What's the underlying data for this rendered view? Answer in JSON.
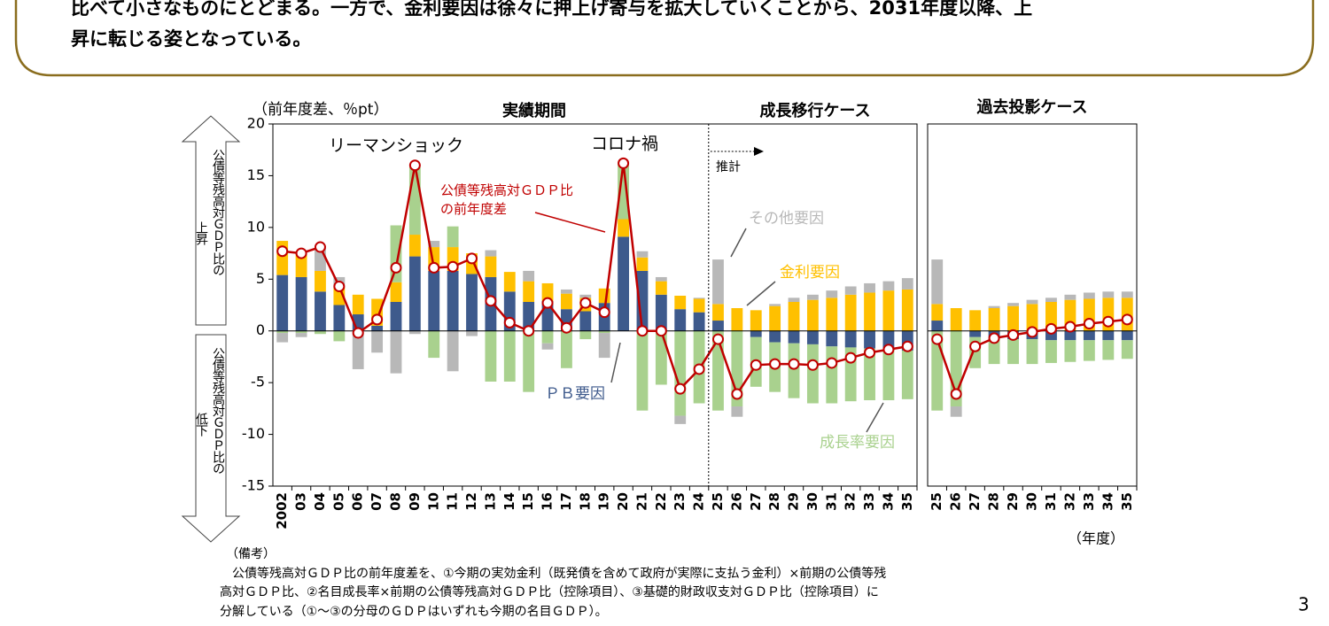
{
  "header": {
    "lines": [
      "比べて小さなものにとどまる。一方で、金利要因は徐々に押上げ寄与を拡大していくことから、2031年度以降、上",
      "昇に転じる姿となっている。"
    ]
  },
  "y_axis_label": "（前年度差、％pt）",
  "x_axis_label": "（年度）",
  "arrows": [
    {
      "label": "公債等残高対ＧＤＰ比の",
      "direction": "上昇"
    },
    {
      "label": "公債等残高対ＧＤＰ比の",
      "direction": "低下"
    }
  ],
  "chart_data": [
    {
      "type": "stacked-bar-line",
      "titles": [
        "実績期間",
        "成長移行ケース"
      ],
      "annotations": [
        "リーマンショック",
        "コロナ禍",
        "推計"
      ],
      "categories": [
        "2002",
        "03",
        "04",
        "05",
        "06",
        "07",
        "08",
        "09",
        "10",
        "11",
        "12",
        "13",
        "14",
        "15",
        "16",
        "17",
        "18",
        "19",
        "20",
        "21",
        "22",
        "23",
        "24",
        "25",
        "26",
        "27",
        "28",
        "29",
        "30",
        "31",
        "32",
        "33",
        "34",
        "35"
      ],
      "ylim": [
        -15,
        20
      ],
      "yticks": [
        -15,
        -10,
        -5,
        0,
        5,
        10,
        15,
        20
      ],
      "series": [
        {
          "name": "ＰＢ要因",
          "color": "#3e5a8c",
          "values": [
            5.4,
            5.2,
            3.8,
            2.5,
            1.6,
            0.5,
            2.8,
            7.2,
            5.8,
            5.8,
            5.5,
            5.2,
            3.8,
            2.8,
            2.9,
            2.1,
            1.9,
            2.7,
            9.1,
            5.8,
            3.5,
            2.1,
            1.8,
            1.0,
            0,
            -0.6,
            -1.1,
            -1.2,
            -1.3,
            -1.5,
            -1.6,
            -1.7,
            -1.8,
            -1.9
          ]
        },
        {
          "name": "金利要因",
          "color": "#ffc000",
          "values": [
            3.3,
            2.5,
            2.0,
            1.7,
            1.9,
            2.6,
            1.9,
            2.1,
            2.3,
            2.3,
            2.0,
            2.0,
            1.9,
            2.0,
            1.7,
            1.5,
            1.3,
            1.4,
            1.7,
            1.3,
            1.3,
            1.3,
            1.3,
            1.6,
            2.2,
            2.0,
            2.4,
            2.8,
            3.0,
            3.2,
            3.5,
            3.7,
            3.9,
            4.0
          ]
        },
        {
          "name": "成長率要因",
          "color": "#a9d18e",
          "values": [
            -0.2,
            -0.2,
            -0.3,
            -1.0,
            -0.1,
            0,
            5.5,
            6.5,
            -2.6,
            2.0,
            0,
            -4.9,
            -4.9,
            -5.9,
            -1.2,
            -3.6,
            -0.8,
            -0.2,
            5.5,
            -7.7,
            -5.2,
            -8.2,
            -7.0,
            -7.7,
            -7.3,
            -4.8,
            -4.8,
            -5.3,
            -5.7,
            -5.5,
            -5.2,
            -5.0,
            -4.9,
            -4.7
          ]
        },
        {
          "name": "その他要因",
          "color": "#b8b8b8",
          "values": [
            -0.9,
            -0.4,
            2.2,
            1.0,
            -3.6,
            -2.1,
            -4.1,
            -0.3,
            0.6,
            -3.9,
            -0.5,
            0.6,
            0,
            1.0,
            -0.6,
            0.4,
            0.3,
            -2.4,
            0,
            0.6,
            0.4,
            -0.8,
            0.1,
            4.3,
            -1.0,
            0,
            0.2,
            0.4,
            0.5,
            0.7,
            0.8,
            0.9,
            0.9,
            1.1
          ]
        },
        {
          "name": "公債等残高対ＧＤＰ比\nの前年度差",
          "type": "line",
          "color": "#c00000",
          "values": [
            7.7,
            7.5,
            8.1,
            4.3,
            -0.2,
            1.1,
            6.1,
            16.0,
            6.1,
            6.2,
            7.0,
            2.9,
            0.8,
            0.0,
            2.7,
            0.3,
            2.7,
            1.8,
            16.2,
            0.0,
            0.0,
            -5.6,
            -3.7,
            -0.8,
            -6.1,
            -3.3,
            -3.2,
            -3.2,
            -3.3,
            -3.1,
            -2.6,
            -2.1,
            -1.8,
            -1.5
          ]
        }
      ]
    },
    {
      "type": "stacked-bar-line",
      "title": "過去投影ケース",
      "categories": [
        "25",
        "26",
        "27",
        "28",
        "29",
        "30",
        "31",
        "32",
        "33",
        "34",
        "35"
      ],
      "ylim": [
        -15,
        20
      ],
      "series": [
        {
          "color": "#3e5a8c",
          "values": [
            1.0,
            0,
            -0.6,
            -0.6,
            -0.8,
            -0.8,
            -0.9,
            -0.9,
            -0.9,
            -0.9,
            -0.9
          ]
        },
        {
          "color": "#ffc000",
          "values": [
            1.6,
            2.2,
            2.0,
            2.2,
            2.4,
            2.6,
            2.8,
            3.0,
            3.1,
            3.2,
            3.2
          ]
        },
        {
          "color": "#a9d18e",
          "values": [
            -7.7,
            -7.3,
            -3.0,
            -2.6,
            -2.4,
            -2.4,
            -2.2,
            -2.1,
            -2.0,
            -1.9,
            -1.8
          ]
        },
        {
          "color": "#b8b8b8",
          "values": [
            4.3,
            -1.0,
            0,
            0.2,
            0.3,
            0.4,
            0.4,
            0.5,
            0.6,
            0.6,
            0.6
          ]
        },
        {
          "type": "line",
          "color": "#c00000",
          "values": [
            -0.8,
            -6.1,
            -1.5,
            -0.7,
            -0.4,
            -0.1,
            0.2,
            0.4,
            0.7,
            0.9,
            1.1
          ]
        }
      ]
    }
  ],
  "notes": {
    "title": "（備考）",
    "lines": [
      "　公債等残高対ＧＤＰ比の前年度差を、①今期の実効金利（既発債を含めて政府が実際に支払う金利）×前期の公債等残",
      "高対ＧＤＰ比、②名目成長率×前期の公債等残高対ＧＤＰ比（控除項目）、③基礎的財政収支対ＧＤＰ比（控除項目）に",
      "分解している（①～③の分母のＧＤＰはいずれも今期の名目ＧＤＰ）。"
    ]
  },
  "page_number": "3"
}
